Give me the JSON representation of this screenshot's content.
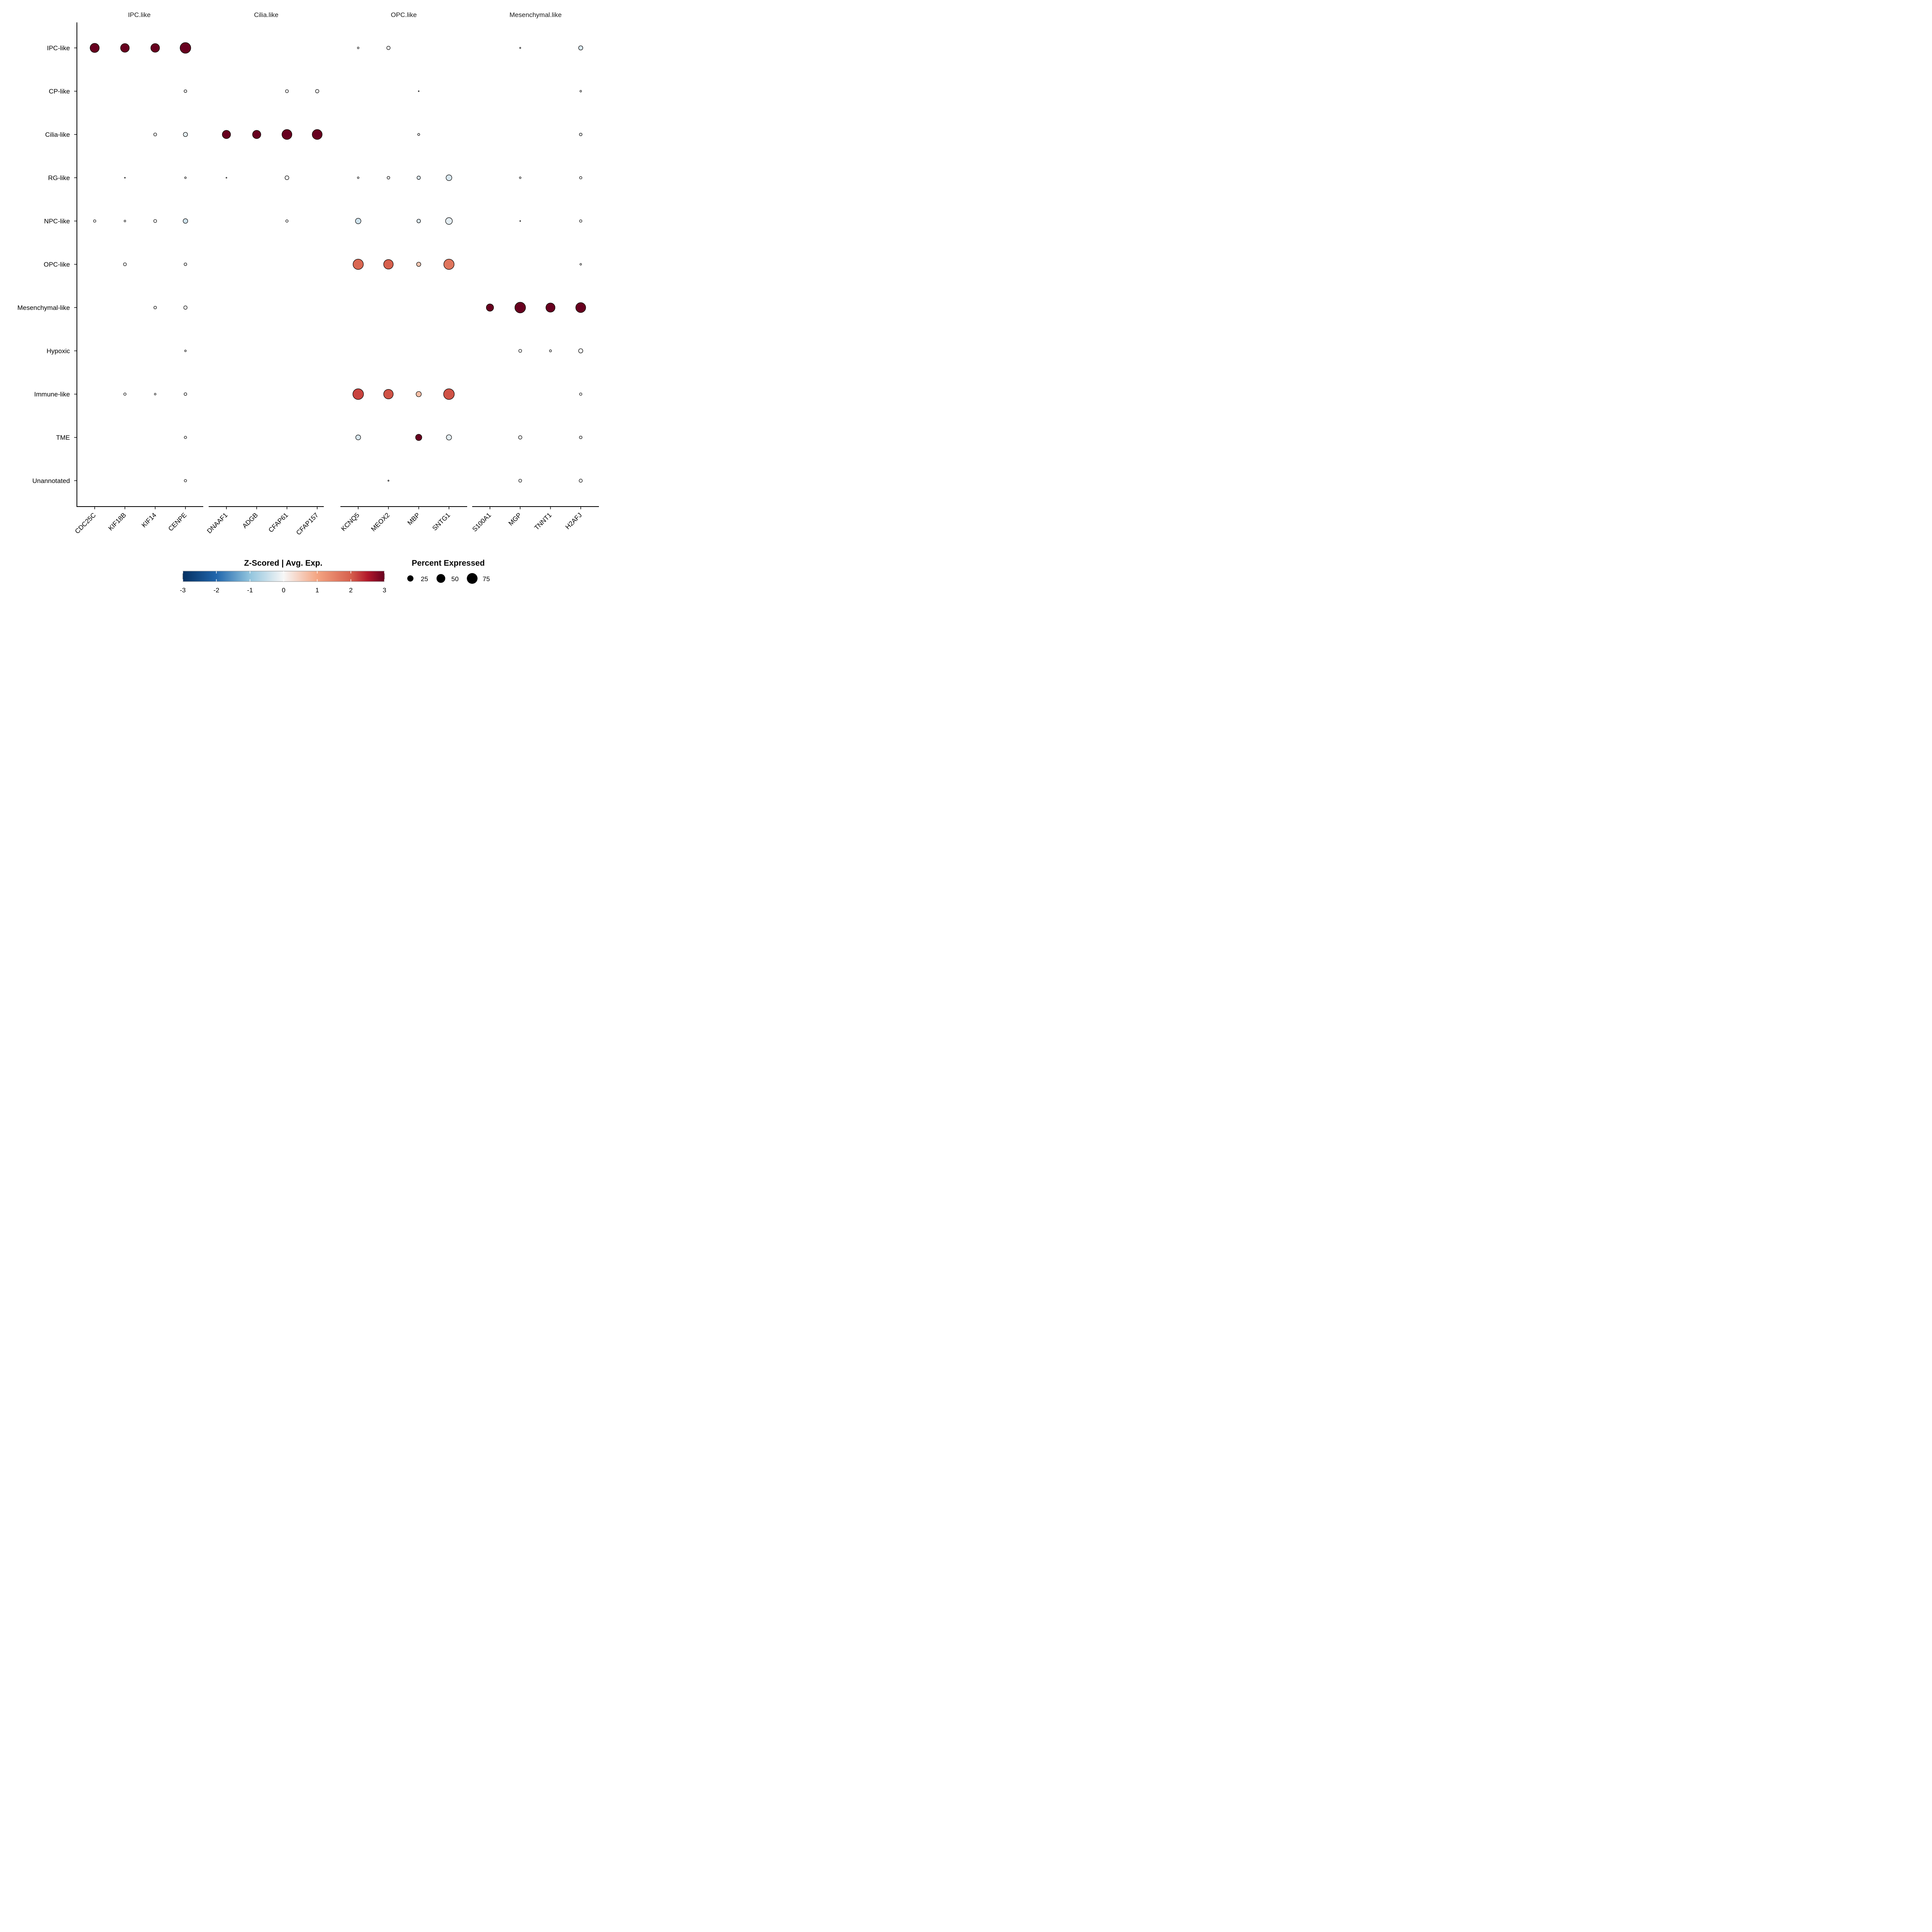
{
  "chart_data": {
    "type": "dot",
    "rows": [
      "IPC-like",
      "CP-like",
      "Cilia-like",
      "RG-like",
      "NPC-like",
      "OPC-like",
      "Mesenchymal-like",
      "Hypoxic",
      "Immune-like",
      "TME",
      "Unannotated"
    ],
    "facets": [
      {
        "label": "IPC.like",
        "genes": [
          "CDC25C",
          "KIF18B",
          "KIF14",
          "CENPE"
        ]
      },
      {
        "label": "Cilia.like",
        "genes": [
          "DNAAF1",
          "ADGB",
          "CFAP61",
          "CFAP157"
        ]
      },
      {
        "label": "OPC.like",
        "genes": [
          "KCNQ5",
          "MEOX2",
          "MBP",
          "SNTG1"
        ]
      },
      {
        "label": "Mesenchymal.like",
        "genes": [
          "S100A1",
          "MGP",
          "TNNT1",
          "H2AFJ"
        ]
      }
    ],
    "points_fields": [
      "row",
      "gene",
      "percent_expressed",
      "zscore"
    ],
    "points": [
      [
        "IPC-like",
        "CDC25C",
        55,
        3
      ],
      [
        "IPC-like",
        "KIF18B",
        50,
        3
      ],
      [
        "IPC-like",
        "KIF14",
        50,
        3
      ],
      [
        "IPC-like",
        "CENPE",
        75,
        3
      ],
      [
        "IPC-like",
        "KCNQ5",
        2,
        0
      ],
      [
        "IPC-like",
        "MEOX2",
        8,
        0
      ],
      [
        "IPC-like",
        "MGP",
        1,
        0
      ],
      [
        "IPC-like",
        "H2AFJ",
        12,
        -0.3
      ],
      [
        "CP-like",
        "CENPE",
        5,
        0
      ],
      [
        "CP-like",
        "CFAP61",
        6,
        0
      ],
      [
        "CP-like",
        "CFAP157",
        8,
        0
      ],
      [
        "CP-like",
        "MBP",
        0.5,
        0
      ],
      [
        "CP-like",
        "H2AFJ",
        2,
        0
      ],
      [
        "Cilia-like",
        "KIF14",
        6,
        0
      ],
      [
        "Cilia-like",
        "CENPE",
        12,
        -0.2
      ],
      [
        "Cilia-like",
        "DNAAF1",
        45,
        3
      ],
      [
        "Cilia-like",
        "ADGB",
        45,
        3
      ],
      [
        "Cilia-like",
        "CFAP61",
        65,
        3
      ],
      [
        "Cilia-like",
        "CFAP157",
        65,
        3
      ],
      [
        "Cilia-like",
        "MBP",
        3,
        0
      ],
      [
        "Cilia-like",
        "H2AFJ",
        5,
        -0.1
      ],
      [
        "RG-like",
        "KIF18B",
        0.5,
        0
      ],
      [
        "RG-like",
        "CENPE",
        2,
        0
      ],
      [
        "RG-like",
        "DNAAF1",
        0.5,
        0
      ],
      [
        "RG-like",
        "CFAP61",
        10,
        0
      ],
      [
        "RG-like",
        "KCNQ5",
        2,
        0
      ],
      [
        "RG-like",
        "MEOX2",
        5,
        0
      ],
      [
        "RG-like",
        "MBP",
        8,
        -0.3
      ],
      [
        "RG-like",
        "SNTG1",
        22,
        -0.3
      ],
      [
        "RG-like",
        "MGP",
        2,
        0
      ],
      [
        "RG-like",
        "H2AFJ",
        4,
        0
      ],
      [
        "NPC-like",
        "CDC25C",
        4,
        0
      ],
      [
        "NPC-like",
        "KIF18B",
        2,
        0
      ],
      [
        "NPC-like",
        "KIF14",
        6,
        0
      ],
      [
        "NPC-like",
        "CENPE",
        14,
        -0.4
      ],
      [
        "NPC-like",
        "CFAP61",
        4,
        0
      ],
      [
        "NPC-like",
        "KCNQ5",
        20,
        -0.4
      ],
      [
        "NPC-like",
        "MBP",
        9,
        -0.3
      ],
      [
        "NPC-like",
        "SNTG1",
        30,
        -0.2
      ],
      [
        "NPC-like",
        "MGP",
        0.5,
        0
      ],
      [
        "NPC-like",
        "H2AFJ",
        4,
        0
      ],
      [
        "OPC-like",
        "KIF18B",
        6,
        0
      ],
      [
        "OPC-like",
        "CENPE",
        5,
        0
      ],
      [
        "OPC-like",
        "KCNQ5",
        70,
        1.9
      ],
      [
        "OPC-like",
        "MEOX2",
        60,
        2.0
      ],
      [
        "OPC-like",
        "MBP",
        12,
        0.6
      ],
      [
        "OPC-like",
        "SNTG1",
        70,
        1.7
      ],
      [
        "OPC-like",
        "H2AFJ",
        2,
        0
      ],
      [
        "Mesenchymal-like",
        "KIF14",
        5,
        0
      ],
      [
        "Mesenchymal-like",
        "CENPE",
        8,
        0
      ],
      [
        "Mesenchymal-like",
        "S100A1",
        35,
        3
      ],
      [
        "Mesenchymal-like",
        "MGP",
        75,
        3
      ],
      [
        "Mesenchymal-like",
        "TNNT1",
        55,
        3
      ],
      [
        "Mesenchymal-like",
        "H2AFJ",
        65,
        3
      ],
      [
        "Hypoxic",
        "CENPE",
        2,
        0
      ],
      [
        "Hypoxic",
        "MGP",
        6,
        0
      ],
      [
        "Hypoxic",
        "TNNT1",
        3,
        0
      ],
      [
        "Hypoxic",
        "H2AFJ",
        12,
        0
      ],
      [
        "Immune-like",
        "KIF18B",
        4,
        0
      ],
      [
        "Immune-like",
        "KIF14",
        2,
        0
      ],
      [
        "Immune-like",
        "CENPE",
        5,
        0
      ],
      [
        "Immune-like",
        "KCNQ5",
        75,
        2.2
      ],
      [
        "Immune-like",
        "MEOX2",
        60,
        2.1
      ],
      [
        "Immune-like",
        "MBP",
        18,
        0.7
      ],
      [
        "Immune-like",
        "SNTG1",
        75,
        2.1
      ],
      [
        "Immune-like",
        "H2AFJ",
        4,
        0
      ],
      [
        "TME",
        "CENPE",
        4,
        0
      ],
      [
        "TME",
        "KCNQ5",
        16,
        -0.3
      ],
      [
        "TME",
        "MBP",
        26,
        3
      ],
      [
        "TME",
        "SNTG1",
        18,
        -0.2
      ],
      [
        "TME",
        "MGP",
        8,
        0
      ],
      [
        "TME",
        "H2AFJ",
        5,
        0
      ],
      [
        "Unannotated",
        "CENPE",
        4,
        0
      ],
      [
        "Unannotated",
        "MEOX2",
        1,
        0
      ],
      [
        "Unannotated",
        "MGP",
        6,
        0
      ],
      [
        "Unannotated",
        "H2AFJ",
        7,
        0
      ]
    ],
    "color_legend": {
      "title": "Z-Scored | Avg. Exp.",
      "ticks": [
        "-3",
        "-2",
        "-1",
        "0",
        "1",
        "2",
        "3"
      ],
      "range": [
        -3,
        3
      ],
      "palette": [
        "#053061",
        "#2166ac",
        "#92c5de",
        "#f7f7f7",
        "#f4a582",
        "#d6604d",
        "#b2182b",
        "#67001f"
      ]
    },
    "size_legend": {
      "title": "Percent Expressed",
      "values": [
        25,
        50,
        75
      ],
      "labels": [
        "25",
        "50",
        "75"
      ]
    }
  }
}
